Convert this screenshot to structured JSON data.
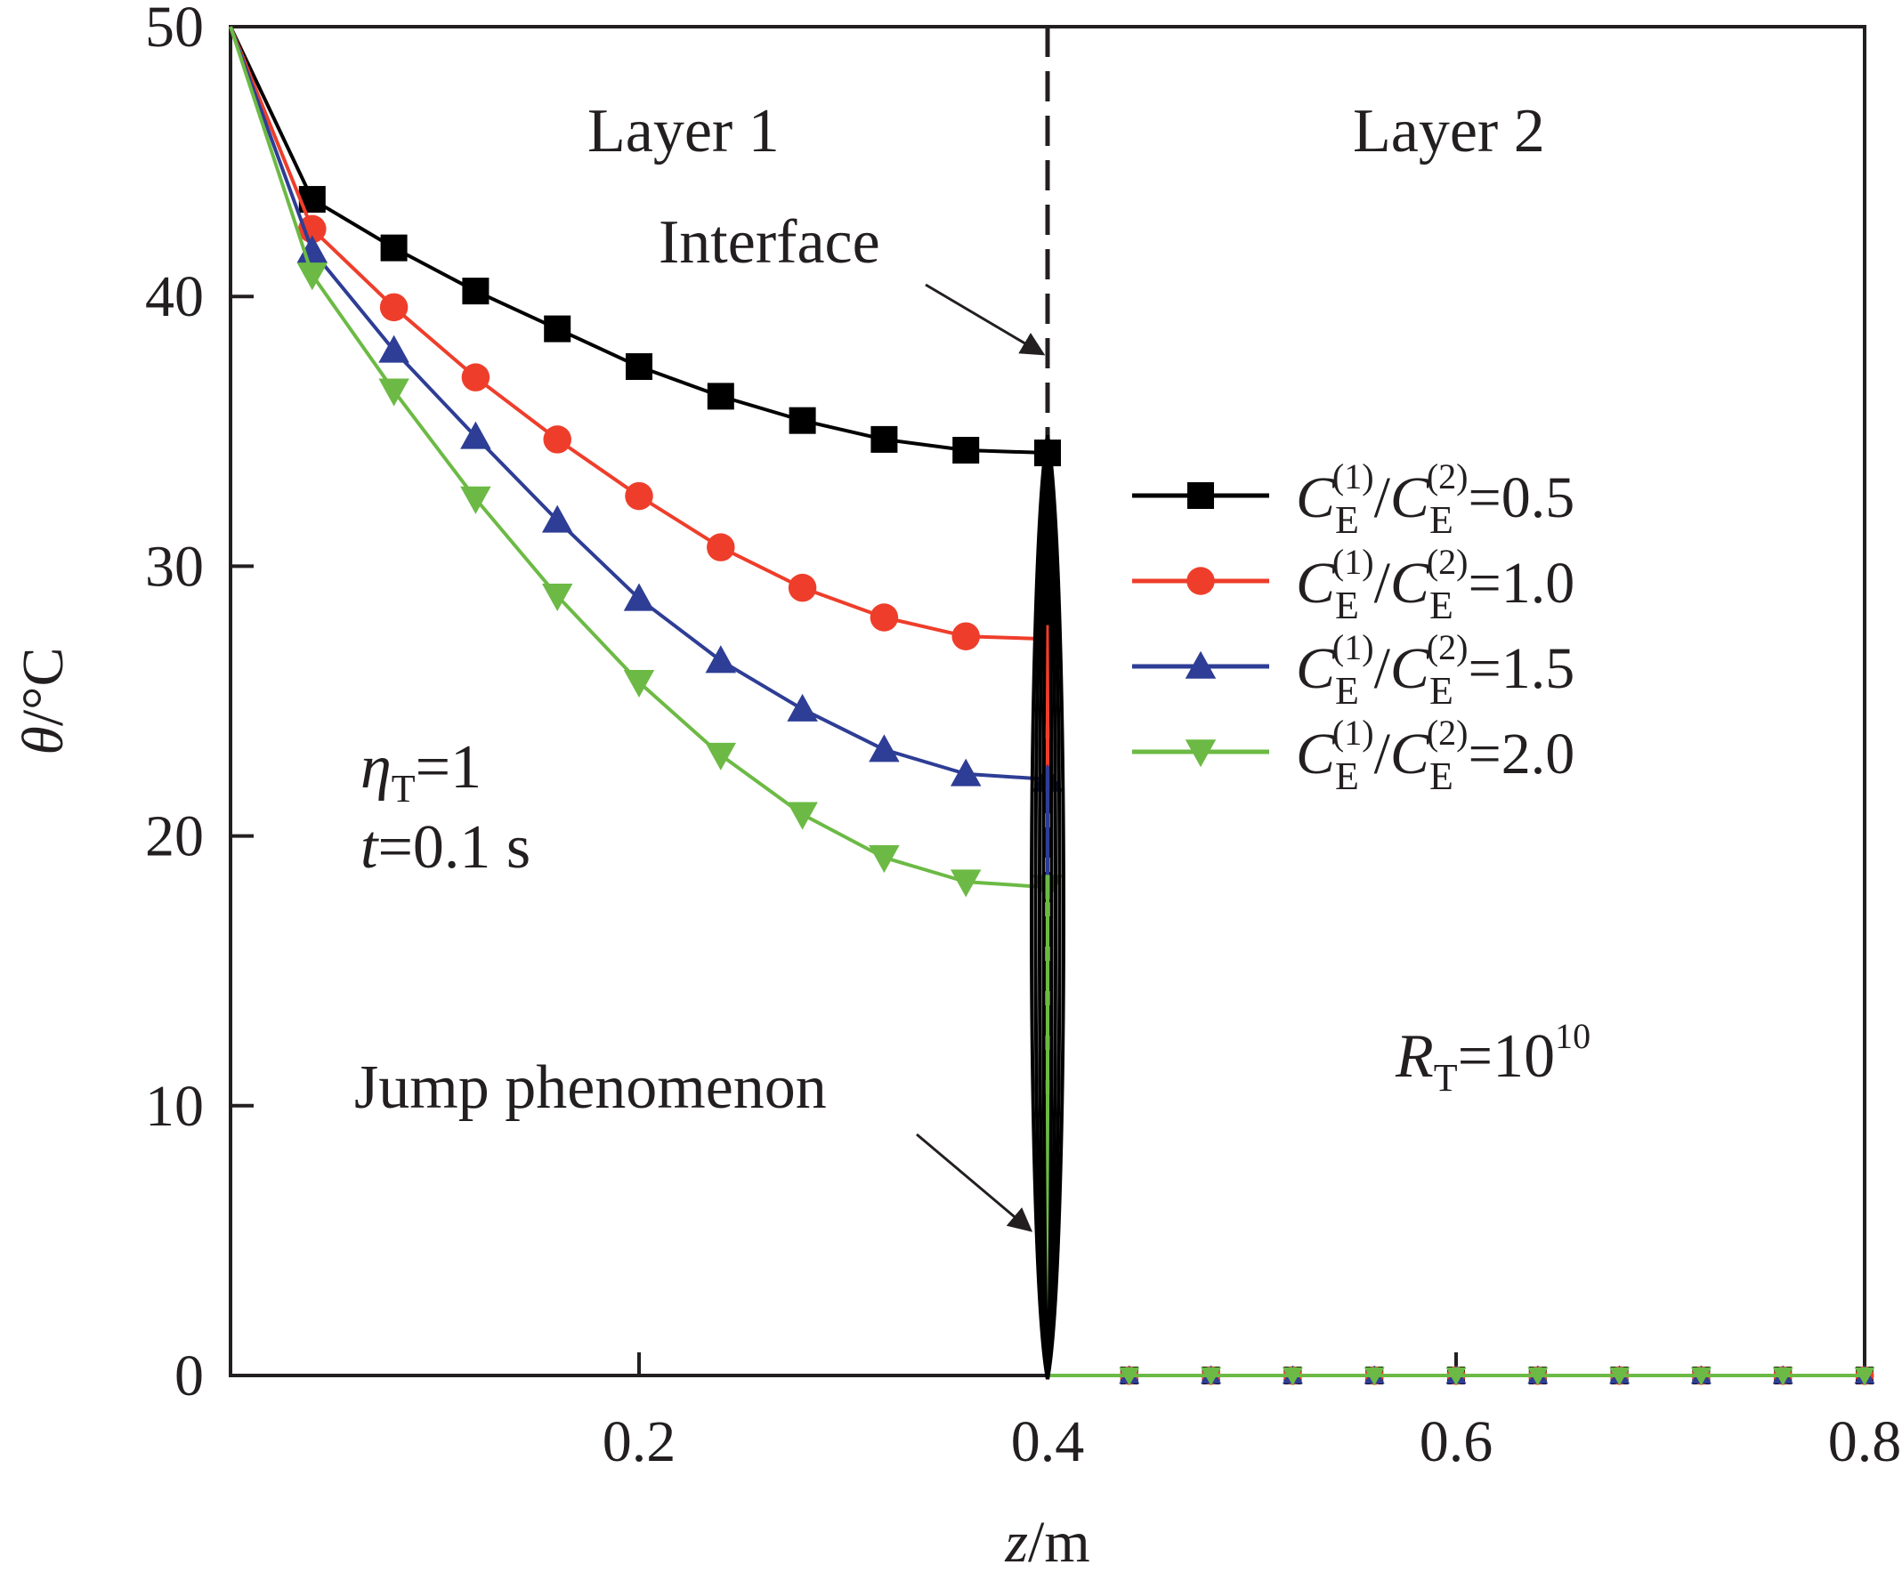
{
  "chart_data": {
    "type": "line",
    "xlabel": {
      "var": "z",
      "unit": "/m"
    },
    "ylabel": {
      "var": "θ",
      "unit": "/°C"
    },
    "xlim": [
      0,
      0.8
    ],
    "ylim": [
      0,
      50
    ],
    "xticks": [
      0.2,
      0.4,
      0.6,
      0.8
    ],
    "xtick_labels": [
      "0.2",
      "0.4",
      "0.6",
      "0.8"
    ],
    "yticks": [
      0,
      10,
      20,
      30,
      40,
      50
    ],
    "ytick_labels": [
      "0",
      "10",
      "20",
      "30",
      "40",
      "50"
    ],
    "grid": false,
    "legend_position": "right",
    "interface_x": 0.4,
    "annotations": {
      "layer1": "Layer 1",
      "layer2": "Layer 2",
      "interface": "Interface",
      "jump": "Jump phenomenon",
      "eta_var": "η",
      "eta_sub": "T",
      "eta_rest": "=1",
      "t_var": "t",
      "t_rest": "=0.1 s",
      "r_var": "R",
      "r_sub": "T",
      "r_base": "=10",
      "r_exp": "10"
    },
    "legend_parts": {
      "c": "C",
      "sub": "E",
      "sup1": "(1)",
      "slash": "/",
      "sup2": "(2)"
    },
    "series": [
      {
        "name": "0.5",
        "legend_value": "=0.5",
        "color": "#000000",
        "marker": "square",
        "x": [
          0,
          0.04,
          0.08,
          0.12,
          0.16,
          0.2,
          0.24,
          0.28,
          0.32,
          0.36,
          0.4,
          0.44,
          0.48,
          0.52,
          0.56,
          0.6,
          0.64,
          0.68,
          0.72,
          0.76,
          0.8
        ],
        "y": [
          50,
          43.6,
          41.8,
          40.2,
          38.8,
          37.4,
          36.3,
          35.4,
          34.7,
          34.3,
          34.2,
          0,
          0,
          0,
          0,
          0,
          0,
          0,
          0,
          0,
          0
        ]
      },
      {
        "name": "1.0",
        "legend_value": "=1.0",
        "color": "#ee3e2b",
        "marker": "circle",
        "x": [
          0,
          0.04,
          0.08,
          0.12,
          0.16,
          0.2,
          0.24,
          0.28,
          0.32,
          0.36,
          0.4,
          0.44,
          0.48,
          0.52,
          0.56,
          0.6,
          0.64,
          0.68,
          0.72,
          0.76,
          0.8
        ],
        "y": [
          50,
          42.5,
          39.6,
          37.0,
          34.7,
          32.6,
          30.7,
          29.2,
          28.1,
          27.4,
          27.3,
          0,
          0,
          0,
          0,
          0,
          0,
          0,
          0,
          0,
          0
        ]
      },
      {
        "name": "1.5",
        "legend_value": "=1.5",
        "color": "#2e3d95",
        "marker": "triangle-up",
        "x": [
          0,
          0.04,
          0.08,
          0.12,
          0.16,
          0.2,
          0.24,
          0.28,
          0.32,
          0.36,
          0.4,
          0.44,
          0.48,
          0.52,
          0.56,
          0.6,
          0.64,
          0.68,
          0.72,
          0.76,
          0.8
        ],
        "y": [
          50,
          41.7,
          38.0,
          34.8,
          31.7,
          28.8,
          26.5,
          24.7,
          23.2,
          22.3,
          22.1,
          0,
          0,
          0,
          0,
          0,
          0,
          0,
          0,
          0,
          0
        ]
      },
      {
        "name": "2.0",
        "legend_value": "=2.0",
        "color": "#6cba45",
        "marker": "triangle-down",
        "x": [
          0,
          0.04,
          0.08,
          0.12,
          0.16,
          0.2,
          0.24,
          0.28,
          0.32,
          0.36,
          0.4,
          0.44,
          0.48,
          0.52,
          0.56,
          0.6,
          0.64,
          0.68,
          0.72,
          0.76,
          0.8
        ],
        "y": [
          50,
          40.8,
          36.5,
          32.5,
          28.9,
          25.7,
          23.0,
          20.8,
          19.2,
          18.3,
          18.1,
          0,
          0,
          0,
          0,
          0,
          0,
          0,
          0,
          0,
          0
        ]
      }
    ]
  }
}
